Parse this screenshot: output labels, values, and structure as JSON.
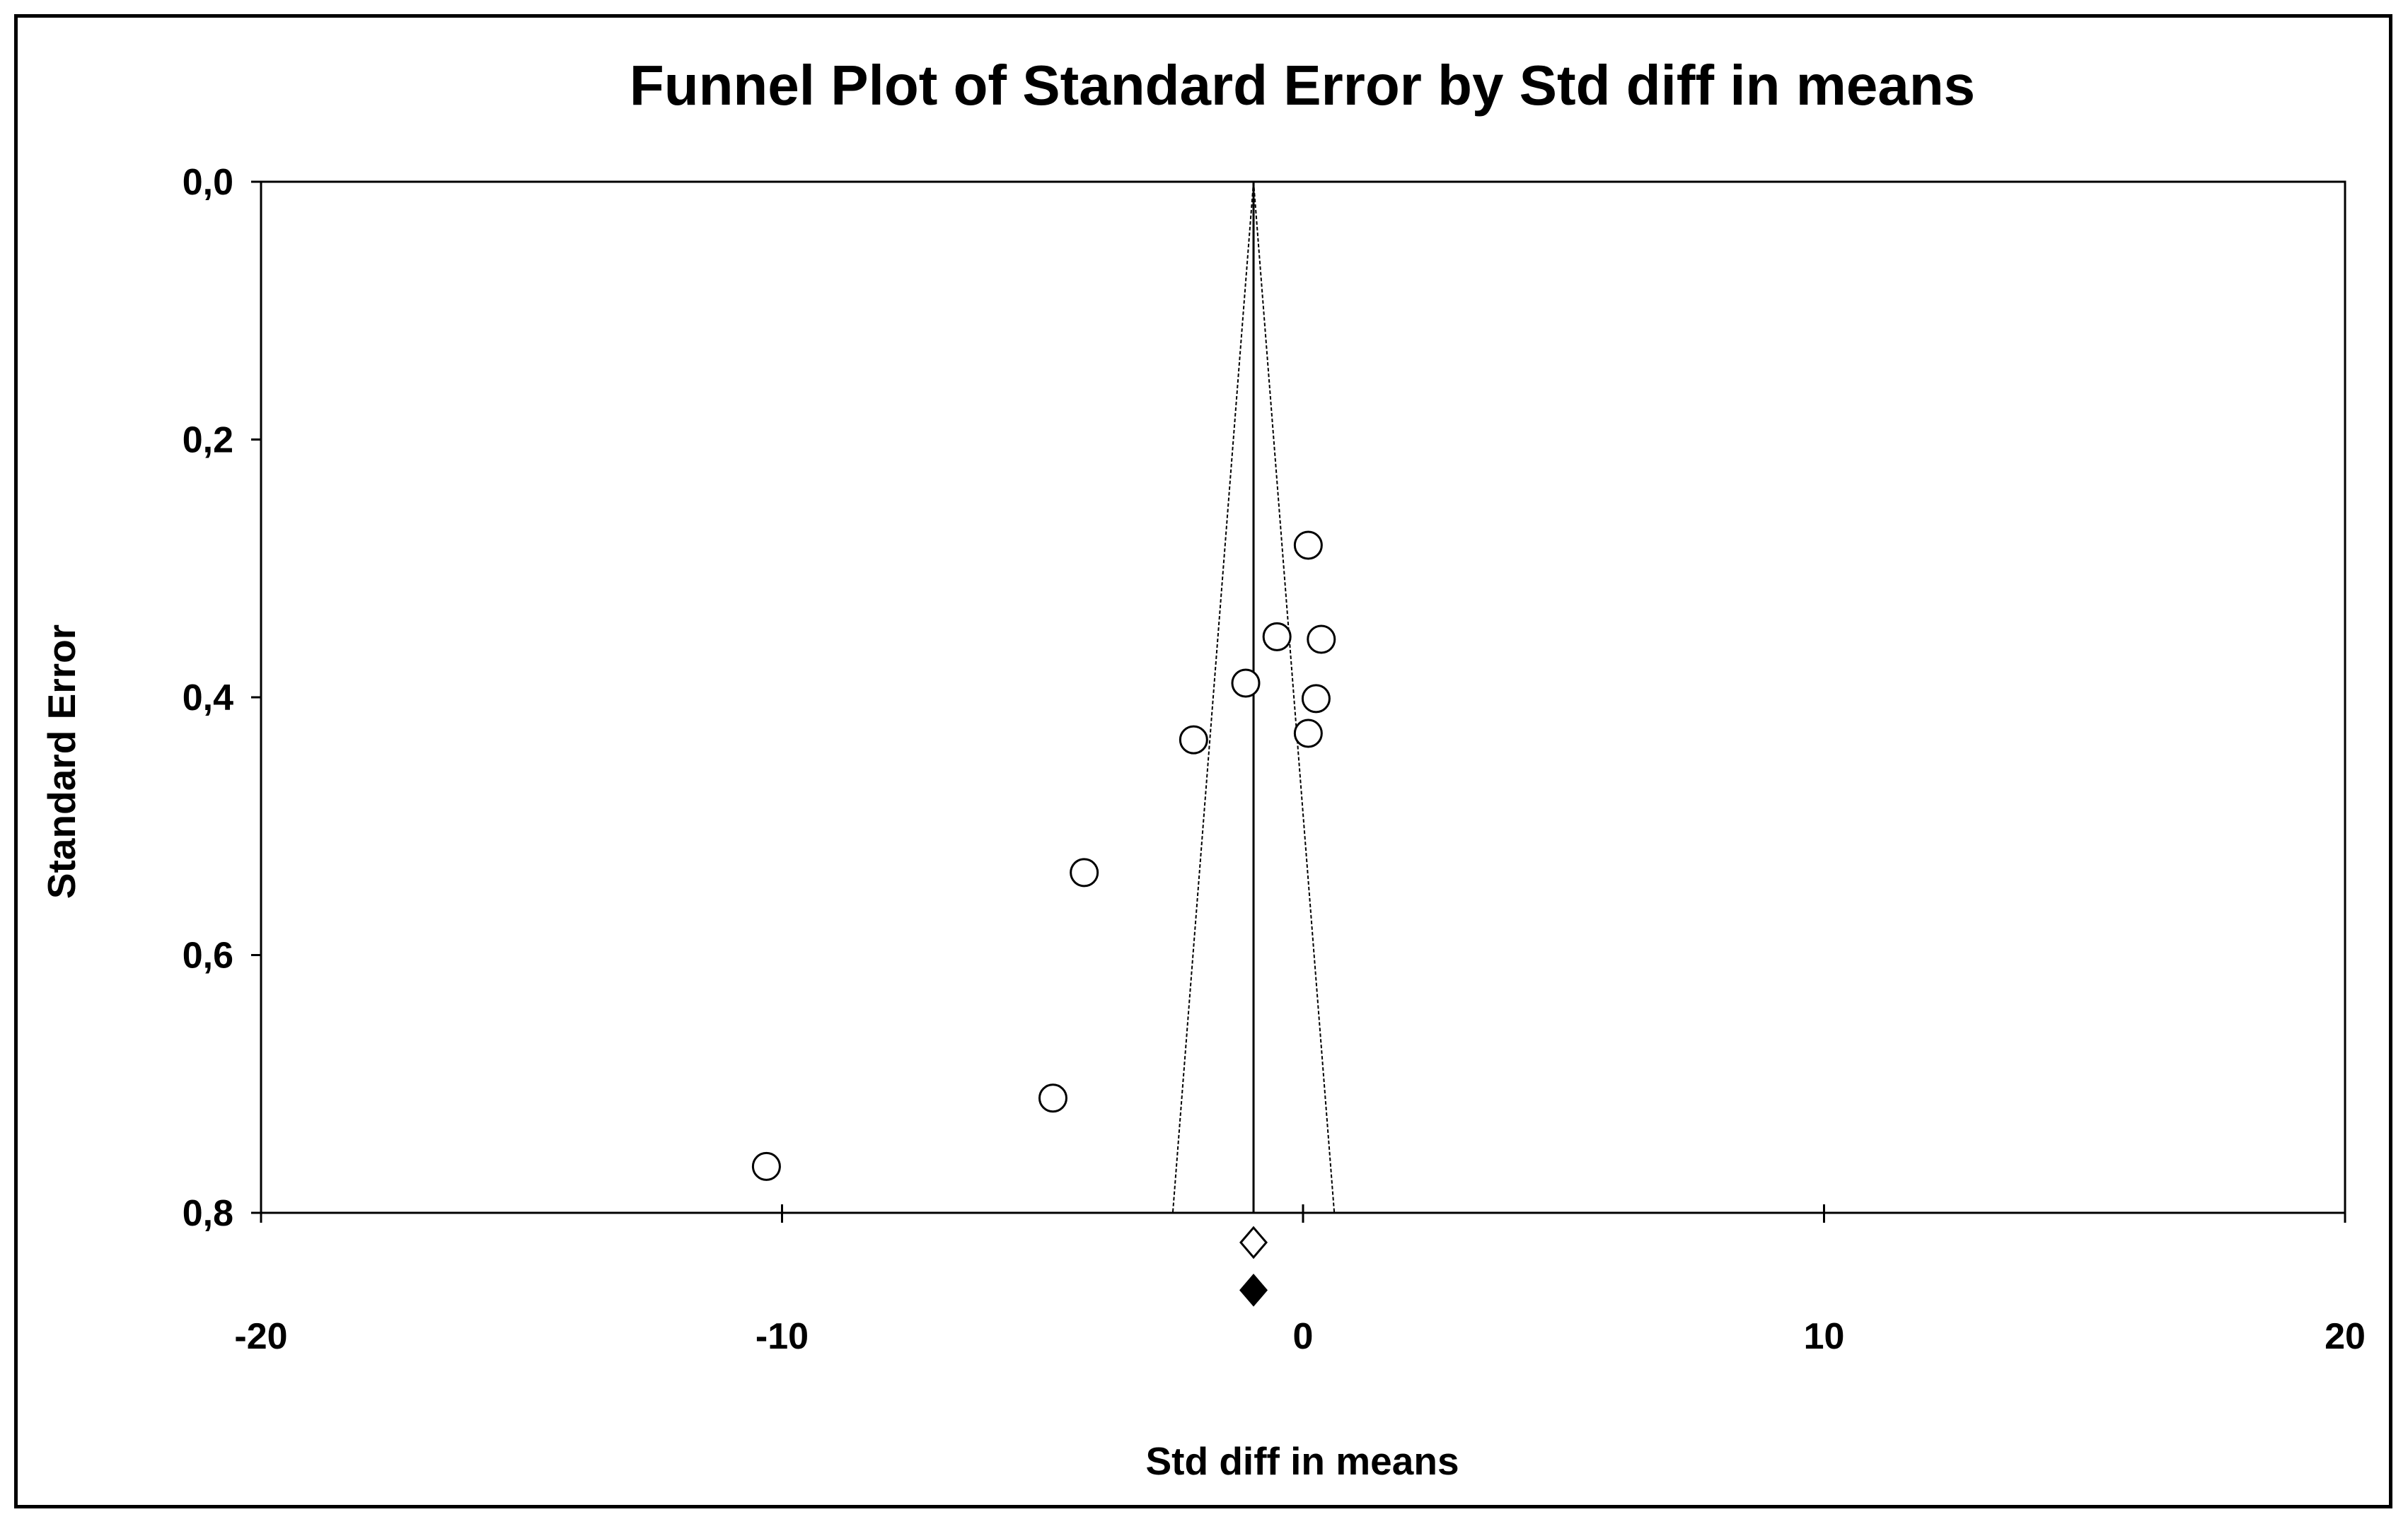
{
  "chart_data": {
    "type": "scatter",
    "title": "Funnel Plot of Standard Error by Std diff in means",
    "xlabel": "Std diff in means",
    "ylabel": "Standard Error",
    "xlim": [
      -20,
      20
    ],
    "ylim": [
      0.0,
      0.8
    ],
    "y_inverted": true,
    "grid": false,
    "x_ticks": [
      -20,
      -10,
      0,
      10,
      20
    ],
    "x_tick_labels": [
      "-20",
      "-10",
      "0",
      "10",
      "20"
    ],
    "y_ticks": [
      0.0,
      0.2,
      0.4,
      0.6,
      0.8
    ],
    "y_tick_labels": [
      "0,0",
      "0,2",
      "0,4",
      "0,6",
      "0,8"
    ],
    "pooled_effect": -0.95,
    "funnel": {
      "apex": [
        -0.95,
        0.0
      ],
      "base_left": [
        -2.5,
        0.8
      ],
      "base_right": [
        0.6,
        0.8
      ]
    },
    "studies": [
      {
        "x": 0.1,
        "y": 0.282
      },
      {
        "x": -0.5,
        "y": 0.353
      },
      {
        "x": 0.35,
        "y": 0.355
      },
      {
        "x": -1.1,
        "y": 0.389
      },
      {
        "x": 0.25,
        "y": 0.401
      },
      {
        "x": 0.1,
        "y": 0.428
      },
      {
        "x": -2.1,
        "y": 0.433
      },
      {
        "x": -4.2,
        "y": 0.536
      },
      {
        "x": -4.8,
        "y": 0.711
      },
      {
        "x": -10.3,
        "y": 0.764
      }
    ],
    "summary_markers": [
      {
        "name": "observed",
        "x": -0.95,
        "y": 0.823,
        "filled": false
      },
      {
        "name": "adjusted",
        "x": -0.95,
        "y": 0.86,
        "filled": true
      }
    ]
  }
}
